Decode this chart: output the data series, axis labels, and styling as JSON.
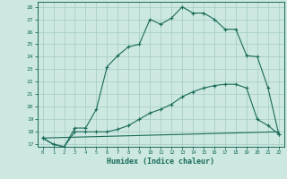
{
  "title": "",
  "xlabel": "Humidex (Indice chaleur)",
  "background_color": "#cce8e0",
  "grid_color": "#aacfc8",
  "line_color": "#1a6b5a",
  "xlim": [
    -0.5,
    22.5
  ],
  "ylim": [
    16.8,
    28.4
  ],
  "yticks": [
    17,
    18,
    19,
    20,
    21,
    22,
    23,
    24,
    25,
    26,
    27,
    28
  ],
  "xticks": [
    0,
    1,
    2,
    3,
    4,
    5,
    6,
    7,
    8,
    9,
    10,
    11,
    12,
    13,
    14,
    15,
    16,
    17,
    18,
    19,
    20,
    21,
    22
  ],
  "series1_x": [
    0,
    1,
    2,
    3,
    4,
    5,
    6,
    7,
    8,
    9,
    10,
    11,
    12,
    13,
    14,
    15,
    16,
    17,
    18,
    19,
    20,
    21,
    22
  ],
  "series1_y": [
    17.5,
    17.0,
    16.8,
    18.3,
    18.3,
    19.8,
    23.2,
    24.1,
    24.8,
    25.0,
    27.0,
    26.6,
    27.1,
    28.0,
    27.5,
    27.5,
    27.0,
    26.2,
    26.2,
    24.1,
    24.0,
    21.5,
    17.8
  ],
  "series2_x": [
    0,
    1,
    2,
    3,
    4,
    5,
    6,
    7,
    8,
    9,
    10,
    11,
    12,
    13,
    14,
    15,
    16,
    17,
    18,
    19,
    20,
    21,
    22
  ],
  "series2_y": [
    17.5,
    17.0,
    16.8,
    18.0,
    18.0,
    18.0,
    18.0,
    18.2,
    18.5,
    19.0,
    19.5,
    19.8,
    20.2,
    20.8,
    21.2,
    21.5,
    21.7,
    21.8,
    21.8,
    21.5,
    19.0,
    18.5,
    17.8
  ],
  "series3_x": [
    0,
    22
  ],
  "series3_y": [
    17.5,
    18.0
  ]
}
